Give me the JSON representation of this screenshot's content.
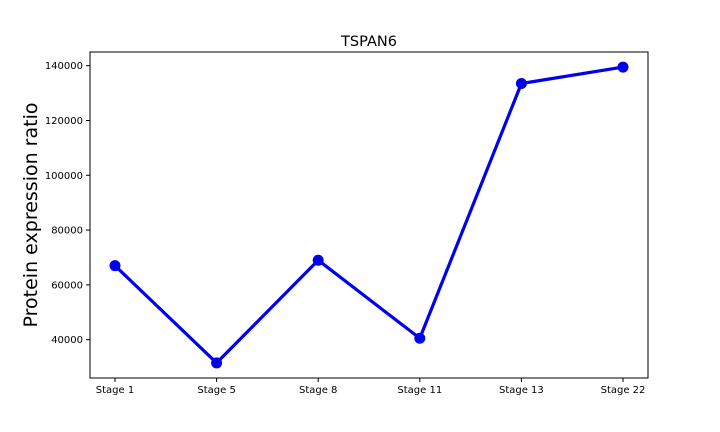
{
  "chart_data": {
    "type": "line",
    "title": "TSPAN6",
    "xlabel": "",
    "ylabel": "Protein expression ratio",
    "categories": [
      "Stage 1",
      "Stage 5",
      "Stage 8",
      "Stage 11",
      "Stage 13",
      "Stage 22"
    ],
    "series": [
      {
        "values": [
          67000,
          31500,
          69000,
          40500,
          133500,
          139500
        ]
      }
    ],
    "yticks": [
      40000,
      60000,
      80000,
      100000,
      120000,
      140000
    ],
    "ylim": [
      26000,
      145000
    ],
    "grid": false,
    "line_color": "#0000ee"
  }
}
